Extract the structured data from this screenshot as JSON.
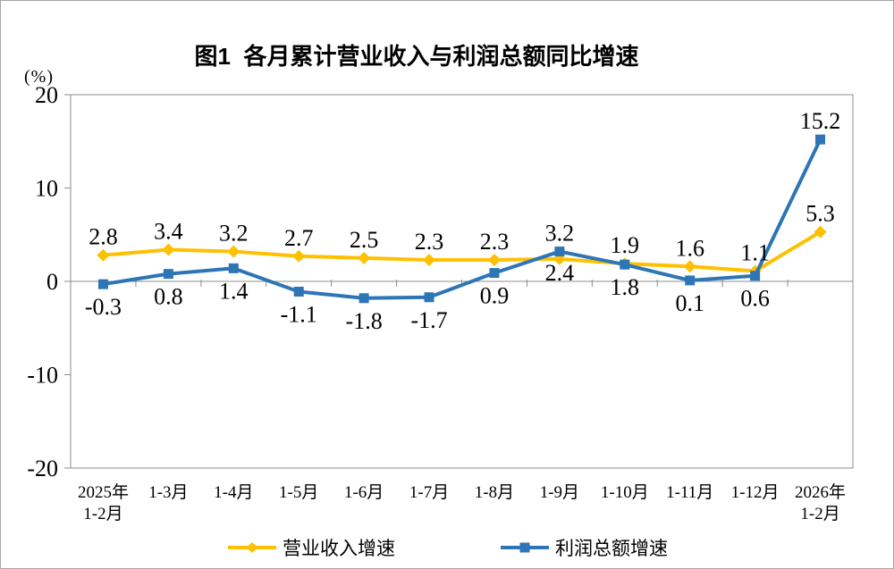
{
  "page": {
    "kind": "statistics-line-chart"
  },
  "colors": {
    "axis": "#8C8C8C",
    "text": "#000000",
    "background": "#FFFFFF",
    "revenue_line": "#FFC000",
    "profit_line": "#2E75B6"
  },
  "chart_data": {
    "type": "line",
    "title": "图1  各月累计营业收入与利润总额同比增速",
    "ylabel": "(%)",
    "xlabel": "",
    "ylim": [
      -20,
      20
    ],
    "yticks": [
      20,
      10,
      0,
      -10,
      -20
    ],
    "grid": false,
    "legend_position": "bottom",
    "categories": [
      [
        "2025年",
        "1-2月"
      ],
      [
        "1-3月"
      ],
      [
        "1-4月"
      ],
      [
        "1-5月"
      ],
      [
        "1-6月"
      ],
      [
        "1-7月"
      ],
      [
        "1-8月"
      ],
      [
        "1-9月"
      ],
      [
        "1-10月"
      ],
      [
        "1-11月"
      ],
      [
        "1-12月"
      ],
      [
        "2026年",
        "1-2月"
      ]
    ],
    "series": [
      {
        "id": "revenue",
        "name": "营业收入增速",
        "color": "#FFC000",
        "marker": "diamond",
        "values": [
          2.8,
          3.4,
          3.2,
          2.7,
          2.5,
          2.3,
          2.3,
          2.4,
          1.9,
          1.6,
          1.1,
          5.3
        ],
        "label_side": [
          "above",
          "above",
          "above",
          "above",
          "above",
          "above",
          "above",
          "below",
          "above",
          "above",
          "above",
          "above"
        ]
      },
      {
        "id": "profit",
        "name": "利润总额增速",
        "color": "#2E75B6",
        "marker": "square",
        "values": [
          -0.3,
          0.8,
          1.4,
          -1.1,
          -1.8,
          -1.7,
          0.9,
          3.2,
          1.8,
          0.1,
          0.6,
          15.2
        ],
        "label_side": [
          "below",
          "below",
          "below",
          "below",
          "below",
          "below",
          "below",
          "above",
          "below",
          "below",
          "below",
          "above"
        ]
      }
    ]
  }
}
